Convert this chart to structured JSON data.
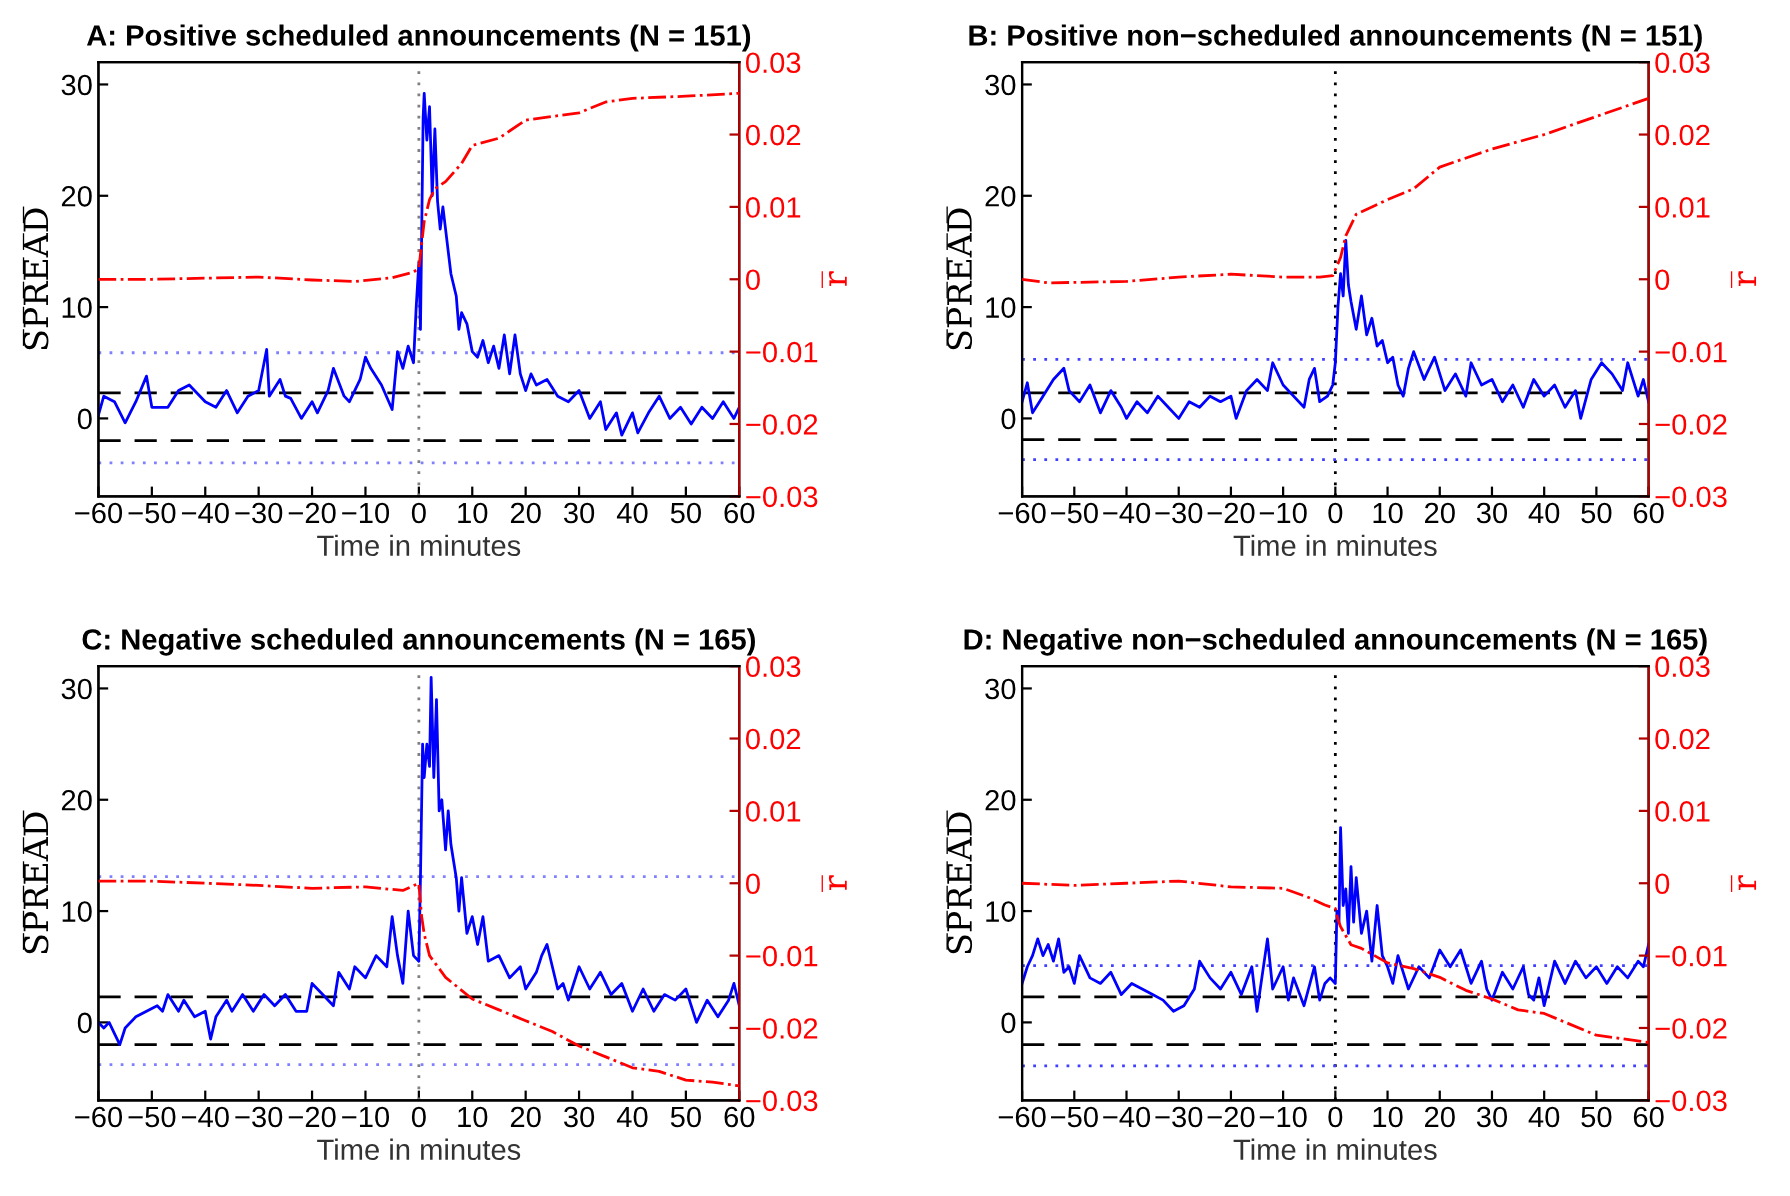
{
  "chart_data": [
    {
      "type": "line",
      "title": "A: Positive scheduled announcements (N = 151)",
      "xlabel": "Time in minutes",
      "ylabel": "S̅P̅R̅E̅A̅D̅",
      "y2label": "r̅",
      "xlim": [
        -60,
        60
      ],
      "xticks": [
        -60,
        -50,
        -40,
        -30,
        -20,
        -10,
        0,
        10,
        20,
        30,
        40,
        50,
        60
      ],
      "ylim": [
        -7,
        32
      ],
      "yticks": [
        0,
        10,
        20,
        30
      ],
      "y2lim": [
        -0.03,
        0.03
      ],
      "y2ticks": [
        -0.03,
        -0.02,
        -0.01,
        0,
        0.01,
        0.02,
        0.03
      ],
      "grid": false,
      "legend": false,
      "series": [
        {
          "color": "#0000ff",
          "line_style": "solid",
          "x": [
            -60,
            -59,
            -57,
            -55,
            -53,
            -51,
            -50,
            -47,
            -45,
            -43,
            -40,
            -38,
            -36,
            -34,
            -32,
            -30,
            -28.5,
            -28,
            -26,
            -25,
            -24,
            -22,
            -20,
            -19,
            -17,
            -16,
            -14,
            -13,
            -11,
            -10,
            -9,
            -7,
            -5,
            -4,
            -3,
            -2,
            -1,
            -0.5,
            0,
            0.3,
            0.8,
            1,
            1.5,
            2,
            2.5,
            3,
            3.5,
            4,
            4.5,
            5,
            6,
            7,
            7.5,
            8,
            9,
            10,
            11,
            12,
            13,
            14,
            15,
            16,
            17,
            18,
            19,
            20,
            21,
            22,
            24,
            26,
            28,
            30,
            32,
            34,
            35,
            37,
            38,
            40,
            41,
            43,
            45,
            47,
            49,
            51,
            53,
            55,
            57,
            59,
            60
          ],
          "values": [
            0.3,
            2,
            1.5,
            -0.4,
            1.5,
            3.8,
            1,
            1,
            2.5,
            3,
            1.5,
            1,
            2.5,
            0.5,
            2,
            2.5,
            6.2,
            2,
            3.5,
            2,
            1.8,
            0,
            1.5,
            0.5,
            2.5,
            4.5,
            2,
            1.5,
            3.5,
            5.5,
            4.5,
            3,
            0.8,
            6,
            4.5,
            6.5,
            5,
            10,
            14,
            8,
            27,
            29.2,
            25,
            28,
            20,
            26,
            19.5,
            17,
            19,
            17,
            13,
            11,
            8,
            9.5,
            8.5,
            6,
            5.5,
            7,
            5,
            6.5,
            4.5,
            7.5,
            4,
            7.5,
            4,
            2.5,
            4,
            3,
            3.5,
            2,
            1.5,
            2.5,
            0,
            1.5,
            -1,
            0.5,
            -1.5,
            0.5,
            -1.3,
            0.5,
            2,
            0,
            1,
            -0.5,
            1,
            0,
            1.5,
            0,
            1
          ]
        },
        {
          "color": "#ff0000",
          "line_style": "dashdot",
          "axis": "y2",
          "x": [
            -60,
            -50,
            -30,
            -20,
            -12,
            -5,
            -1,
            0,
            1,
            2,
            3,
            4,
            5,
            8,
            10,
            15,
            20,
            25,
            30,
            35,
            40,
            50,
            60
          ],
          "values": [
            0.0,
            0.0,
            0.0003,
            -0.0001,
            -0.0003,
            0.0002,
            0.001,
            0.0015,
            0.008,
            0.011,
            0.0125,
            0.013,
            0.0135,
            0.016,
            0.0185,
            0.0195,
            0.022,
            0.0225,
            0.023,
            0.0245,
            0.025,
            0.0253,
            0.0257
          ]
        }
      ],
      "ref_lines": [
        {
          "axis": "x",
          "value": 0,
          "color": "#808080",
          "line_style": "dotted"
        },
        {
          "axis": "y",
          "value": 2.3,
          "color": "#000000",
          "line_style": "dashed"
        },
        {
          "axis": "y",
          "value": -2.0,
          "color": "#000000",
          "line_style": "dashed"
        },
        {
          "axis": "y",
          "value": 5.9,
          "color": "#8080ff",
          "line_style": "dotted"
        },
        {
          "axis": "y",
          "value": -4.0,
          "color": "#8080ff",
          "line_style": "dotted"
        }
      ]
    },
    {
      "type": "line",
      "title": "B: Positive non−scheduled announcements (N = 151)",
      "xlabel": "Time in minutes",
      "ylabel": "S̅P̅R̅E̅A̅D̅",
      "y2label": "r̅",
      "xlim": [
        -60,
        60
      ],
      "xticks": [
        -60,
        -50,
        -40,
        -30,
        -20,
        -10,
        0,
        10,
        20,
        30,
        40,
        50,
        60
      ],
      "ylim": [
        -7,
        32
      ],
      "yticks": [
        0,
        10,
        20,
        30
      ],
      "y2lim": [
        -0.03,
        0.03
      ],
      "y2ticks": [
        -0.03,
        -0.02,
        -0.01,
        0,
        0.01,
        0.02,
        0.03
      ],
      "grid": false,
      "legend": false,
      "series": [
        {
          "color": "#0000ff",
          "line_style": "solid",
          "x": [
            -60,
            -59,
            -58,
            -56,
            -54,
            -52,
            -51,
            -49,
            -47,
            -45,
            -43,
            -41,
            -40,
            -38,
            -36,
            -34,
            -32,
            -30,
            -28,
            -26,
            -24,
            -22,
            -20,
            -19,
            -17,
            -15,
            -13,
            -12,
            -10,
            -8,
            -6,
            -5,
            -4,
            -3,
            -1.5,
            -0.5,
            0,
            0.5,
            1,
            1.5,
            2,
            2.5,
            3,
            4,
            5,
            6,
            7,
            8,
            9,
            10,
            11,
            12,
            13,
            14,
            15,
            17,
            19,
            21,
            23,
            25,
            26,
            28,
            30,
            32,
            34,
            36,
            38,
            40,
            42,
            44,
            46,
            47,
            49,
            51,
            53,
            55,
            56,
            58,
            59,
            60
          ],
          "values": [
            1.5,
            3.2,
            0.5,
            2,
            3.5,
            4.5,
            2.5,
            1.5,
            3,
            0.5,
            2.5,
            1,
            0,
            1.5,
            0.5,
            2,
            1,
            0,
            1.5,
            1,
            2,
            1.5,
            2,
            0,
            2.5,
            3.5,
            2.5,
            5,
            3,
            2,
            1,
            3.5,
            4.5,
            1.5,
            2,
            3,
            5,
            10,
            13,
            11,
            16,
            12,
            10.5,
            8,
            11,
            7.5,
            9,
            6.5,
            7,
            5,
            5.5,
            3,
            2,
            4.5,
            6,
            3.5,
            5.5,
            2.5,
            4,
            2,
            5,
            3,
            3.5,
            1.5,
            3,
            1,
            3.5,
            2,
            3,
            1,
            2.5,
            0,
            3.5,
            5,
            4,
            2.5,
            5,
            2,
            3.5,
            1.5
          ]
        },
        {
          "color": "#ff0000",
          "line_style": "dashdot",
          "axis": "y2",
          "x": [
            -60,
            -55,
            -40,
            -30,
            -20,
            -10,
            -3,
            -0.5,
            1,
            2,
            4,
            7,
            10,
            15,
            20,
            30,
            40,
            50,
            60
          ],
          "values": [
            0.0,
            -0.0005,
            -0.0003,
            0.0003,
            0.0007,
            0.0003,
            0.0003,
            0.0005,
            0.003,
            0.006,
            0.009,
            0.01,
            0.011,
            0.0125,
            0.0155,
            0.018,
            0.02,
            0.0225,
            0.025
          ]
        }
      ],
      "ref_lines": [
        {
          "axis": "x",
          "value": 0,
          "color": "#000000",
          "line_style": "dotted"
        },
        {
          "axis": "y",
          "value": 2.3,
          "color": "#000000",
          "line_style": "dashed"
        },
        {
          "axis": "y",
          "value": -1.9,
          "color": "#000000",
          "line_style": "dashed"
        },
        {
          "axis": "y",
          "value": 5.3,
          "color": "#4040ff",
          "line_style": "dotted"
        },
        {
          "axis": "y",
          "value": -3.7,
          "color": "#4040ff",
          "line_style": "dotted"
        }
      ]
    },
    {
      "type": "line",
      "title": "C: Negative scheduled announcements (N = 165)",
      "xlabel": "Time in minutes",
      "ylabel": "S̅P̅R̅E̅A̅D̅",
      "y2label": "r̅",
      "xlim": [
        -60,
        60
      ],
      "xticks": [
        -60,
        -50,
        -40,
        -30,
        -20,
        -10,
        0,
        10,
        20,
        30,
        40,
        50,
        60
      ],
      "ylim": [
        -7,
        32
      ],
      "yticks": [
        0,
        10,
        20,
        30
      ],
      "y2lim": [
        -0.03,
        0.03
      ],
      "y2ticks": [
        -0.03,
        -0.02,
        -0.01,
        0,
        0.01,
        0.02,
        0.03
      ],
      "grid": false,
      "legend": false,
      "series": [
        {
          "color": "#0000ff",
          "line_style": "solid",
          "x": [
            -60,
            -59,
            -58,
            -57,
            -56,
            -55,
            -53,
            -51,
            -49,
            -48,
            -47,
            -45,
            -44,
            -42,
            -40,
            -39,
            -38,
            -36,
            -35,
            -33,
            -31,
            -29,
            -27,
            -25,
            -23,
            -21,
            -20,
            -18,
            -16,
            -15,
            -13,
            -12,
            -10,
            -8,
            -6,
            -5,
            -4,
            -3,
            -2,
            -1,
            0,
            0.3,
            0.7,
            1,
            1.5,
            2,
            2.3,
            2.8,
            3.3,
            3.8,
            4.3,
            5,
            5.5,
            6,
            7,
            7.5,
            8,
            9,
            10,
            11,
            12,
            13,
            15,
            17,
            19,
            20,
            22,
            23,
            24,
            26,
            27,
            28,
            30,
            32,
            34,
            36,
            38,
            40,
            42,
            44,
            46,
            48,
            50,
            52,
            54,
            56,
            58,
            59,
            60
          ],
          "values": [
            0,
            -0.5,
            0,
            -1,
            -2,
            -0.5,
            0.5,
            1,
            1.5,
            1,
            2.5,
            1,
            2,
            0.5,
            1,
            -1.5,
            0.5,
            2,
            1,
            2.5,
            1,
            2.5,
            1.5,
            2.5,
            1,
            1,
            3.5,
            2.5,
            1.5,
            4.5,
            3,
            5,
            4,
            6,
            5,
            9.5,
            6,
            3.5,
            10,
            6,
            5.5,
            13,
            25,
            22,
            25,
            23,
            31,
            22,
            29,
            19,
            20,
            15.5,
            19,
            16,
            13,
            10,
            13,
            8,
            9.5,
            7,
            9.5,
            5.5,
            6,
            4,
            5,
            3,
            4.5,
            6,
            7,
            3,
            3.5,
            2,
            5,
            3,
            4.5,
            2.5,
            3.5,
            1,
            3,
            1,
            2.5,
            2,
            3,
            0,
            2,
            0.5,
            2,
            3.5,
            1.5
          ]
        },
        {
          "color": "#ff0000",
          "line_style": "dashdot",
          "axis": "y2",
          "x": [
            -60,
            -50,
            -40,
            -30,
            -20,
            -10,
            -3,
            0,
            0.5,
            1,
            2,
            3,
            5,
            10,
            15,
            20,
            25,
            30,
            35,
            40,
            45,
            50,
            55,
            60
          ],
          "values": [
            0.0003,
            0.0003,
            0.0,
            -0.0003,
            -0.0007,
            -0.0005,
            -0.001,
            0.0,
            -0.0045,
            -0.007,
            -0.01,
            -0.011,
            -0.013,
            -0.016,
            -0.0175,
            -0.019,
            -0.0205,
            -0.0225,
            -0.024,
            -0.0255,
            -0.026,
            -0.0272,
            -0.0275,
            -0.028
          ]
        }
      ],
      "ref_lines": [
        {
          "axis": "x",
          "value": 0,
          "color": "#808080",
          "line_style": "dotted"
        },
        {
          "axis": "y",
          "value": 2.3,
          "color": "#000000",
          "line_style": "dashed"
        },
        {
          "axis": "y",
          "value": -2.0,
          "color": "#000000",
          "line_style": "dashed"
        },
        {
          "axis": "y",
          "value": 13.1,
          "color": "#8080ff",
          "line_style": "dotted"
        },
        {
          "axis": "y",
          "value": -3.8,
          "color": "#8080ff",
          "line_style": "dotted"
        }
      ]
    },
    {
      "type": "line",
      "title": "D: Negative non−scheduled announcements (N = 165)",
      "xlabel": "Time in minutes",
      "ylabel": "S̅P̅R̅E̅A̅D̅",
      "y2label": "r̅",
      "xlim": [
        -60,
        60
      ],
      "xticks": [
        -60,
        -50,
        -40,
        -30,
        -20,
        -10,
        0,
        10,
        20,
        30,
        40,
        50,
        60
      ],
      "ylim": [
        -7,
        32
      ],
      "yticks": [
        0,
        10,
        20,
        30
      ],
      "y2lim": [
        -0.03,
        0.03
      ],
      "y2ticks": [
        -0.03,
        -0.02,
        -0.01,
        0,
        0.01,
        0.02,
        0.03
      ],
      "grid": false,
      "legend": false,
      "series": [
        {
          "color": "#0000ff",
          "line_style": "solid",
          "x": [
            -60,
            -59,
            -58,
            -57,
            -56,
            -55,
            -54,
            -53,
            -52,
            -51,
            -50,
            -49,
            -47,
            -45,
            -43,
            -41,
            -39,
            -37,
            -35,
            -33,
            -31,
            -29,
            -27,
            -26,
            -24,
            -22,
            -20,
            -18,
            -16,
            -15,
            -13,
            -12,
            -10,
            -9,
            -8,
            -6,
            -4,
            -3,
            -2,
            -1,
            0,
            0.3,
            0.7,
            1,
            1.5,
            2,
            2.5,
            3,
            3.5,
            4,
            5,
            6,
            7,
            8,
            9,
            10,
            11,
            12,
            13,
            14,
            16,
            18,
            20,
            22,
            24,
            26,
            28,
            29,
            30,
            32,
            34,
            36,
            37,
            38,
            39,
            40,
            42,
            44,
            46,
            48,
            50,
            52,
            54,
            56,
            58,
            59,
            60
          ],
          "values": [
            3.5,
            5,
            6,
            7.5,
            6,
            7,
            5.5,
            7.5,
            4.5,
            5,
            3.5,
            6,
            4,
            3.5,
            4.5,
            2.5,
            3.5,
            3,
            2.5,
            2,
            1,
            1.5,
            3,
            5.5,
            4,
            3,
            4.5,
            2.5,
            5,
            1,
            7.5,
            3,
            5,
            2,
            4,
            1.5,
            5,
            2,
            3.5,
            4,
            3.5,
            10,
            9,
            17.5,
            10.5,
            12,
            8,
            14,
            9,
            13,
            8,
            10,
            5.5,
            10.5,
            6,
            5,
            3.5,
            6,
            4.5,
            3,
            5,
            4,
            6.5,
            5,
            6.5,
            3.5,
            5.5,
            3,
            2,
            4.5,
            3,
            5,
            2.5,
            2,
            4,
            1.5,
            5.5,
            3.5,
            5.5,
            4,
            5,
            3.5,
            5,
            4,
            5.5,
            5,
            7
          ]
        },
        {
          "color": "#ff0000",
          "line_style": "dashdot",
          "axis": "y2",
          "x": [
            -60,
            -50,
            -40,
            -30,
            -20,
            -10,
            -5,
            -2,
            0,
            0.5,
            1,
            3,
            5,
            10,
            15,
            20,
            25,
            30,
            35,
            40,
            45,
            50,
            55,
            60
          ],
          "values": [
            0.0,
            -0.0003,
            0.0,
            0.0003,
            -0.0005,
            -0.0007,
            -0.002,
            -0.003,
            -0.0035,
            -0.005,
            -0.006,
            -0.0085,
            -0.009,
            -0.011,
            -0.0118,
            -0.013,
            -0.0148,
            -0.016,
            -0.0175,
            -0.018,
            -0.0195,
            -0.021,
            -0.0215,
            -0.022
          ]
        }
      ],
      "ref_lines": [
        {
          "axis": "x",
          "value": 0,
          "color": "#000000",
          "line_style": "dotted"
        },
        {
          "axis": "y",
          "value": 2.3,
          "color": "#000000",
          "line_style": "dashed"
        },
        {
          "axis": "y",
          "value": -2.0,
          "color": "#000000",
          "line_style": "dashed"
        },
        {
          "axis": "y",
          "value": 5.1,
          "color": "#4040ff",
          "line_style": "dotted"
        },
        {
          "axis": "y",
          "value": -3.9,
          "color": "#4040ff",
          "line_style": "dotted"
        }
      ]
    }
  ]
}
